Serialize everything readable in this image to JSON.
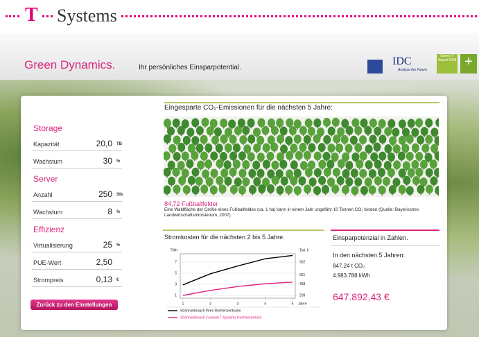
{
  "header": {
    "logo": "T",
    "brand": "Systems"
  },
  "band": {
    "title": "Green Dynamics.",
    "subtitle": "Ihr persönliches Einsparpotential.",
    "logos": [
      "IDC",
      "Analyze the Future",
      "Green IT Award 2008"
    ]
  },
  "settings": {
    "sections": [
      {
        "title": "Storage",
        "rows": [
          {
            "label": "Kapazität",
            "value": "20,0",
            "unit": "TB"
          },
          {
            "label": "Wachstum",
            "value": "30",
            "unit": "%"
          }
        ]
      },
      {
        "title": "Server",
        "rows": [
          {
            "label": "Anzahl",
            "value": "250",
            "unit": "Stk"
          },
          {
            "label": "Wachstum",
            "value": "8",
            "unit": "%"
          }
        ]
      },
      {
        "title": "Effizienz",
        "rows": [
          {
            "label": "Virtualisierung",
            "value": "25",
            "unit": "%"
          },
          {
            "label": "PUE-Wert",
            "value": "2,50"
          },
          {
            "label": "Strompreis",
            "value": "0,13",
            "unit": "€"
          }
        ]
      }
    ],
    "button": "Zurück zu den Einstellungen"
  },
  "co2": {
    "title": "Eingesparte CO₂-Emissionen für die nächsten 5 Jahre:",
    "fields": "84,72 Fußballfelder",
    "description": "Eine Waldfläche der Größe eines Fußballfeldes (ca. 1 ha) kann in einem Jahr ungefähr 10 Tonnen CO₂ binden (Quelle: Bayerisches Landwirtschaftsministerium, 2007)."
  },
  "chart": {
    "type": "line",
    "title": "Stromkosten für die nächsten 2 bis 5 Jahre.",
    "y_label": "TWh",
    "y2_label": "Tsd. €",
    "x_label": "Jahre",
    "x": [
      1,
      2,
      3,
      4,
      5
    ],
    "xlim": [
      0.9,
      5.1
    ],
    "xticks": [
      1,
      2,
      3,
      4,
      5
    ],
    "ylim": [
      0.5,
      8.5
    ],
    "yticks": [
      1,
      3,
      5,
      7
    ],
    "y2lim": [
      149,
      1113
    ],
    "y2ticks": [
      209,
      458,
      651,
      932
    ],
    "grid": true,
    "series": [
      {
        "name": "Stromverbrauch Ihres Rechenzentrums",
        "color": "#000000",
        "values": [
          2.9,
          4.9,
          6.3,
          7.6,
          8.2
        ]
      },
      {
        "name": "Stromverbrauch in einem T-Systems Rechenzentrum",
        "color": "#e0207e",
        "values": [
          1,
          1.9,
          2.6,
          3.1,
          3.4
        ]
      }
    ]
  },
  "savings": {
    "title": "Einsparpotenzial in Zahlen.",
    "period": "In den nächsten 5 Jahren:",
    "co2": "847,24 t CO₂",
    "kwh": "4.983.788 kWh",
    "euro": "647.892,43 €"
  }
}
